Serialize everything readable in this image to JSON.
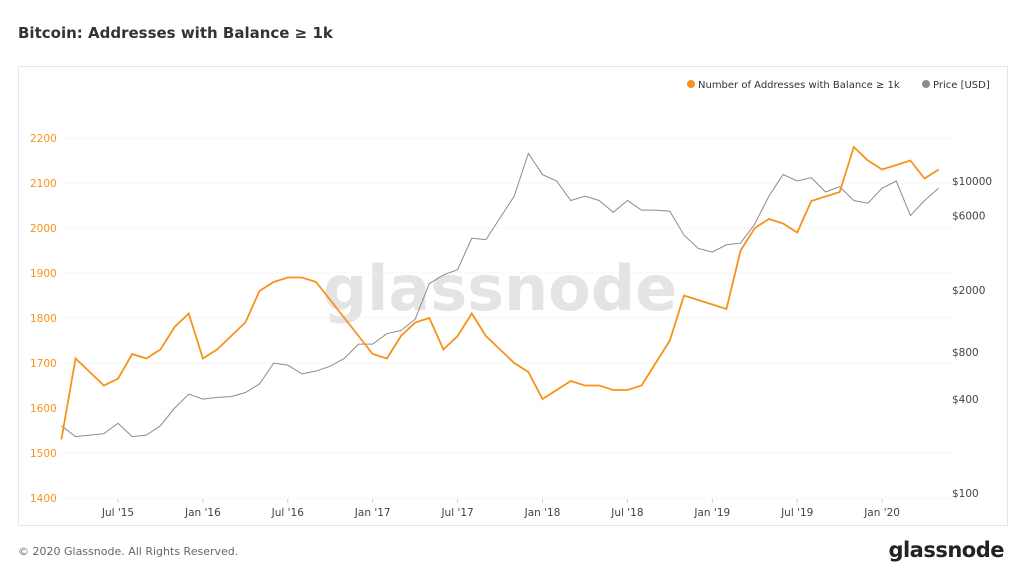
{
  "title": "Bitcoin: Addresses with Balance ≥ 1k",
  "footer": "© 2020 Glassnode. All Rights Reserved.",
  "logo": "glassnode",
  "watermark": "glassnode",
  "colors": {
    "addresses": "#f7931a",
    "price": "#8c8c8c"
  },
  "chart_data": {
    "type": "line",
    "title": "Bitcoin: Addresses with Balance ≥ 1k",
    "legend_position": "top-right",
    "legend": [
      "Number of Addresses with Balance ≥ 1k",
      "Price [USD]"
    ],
    "x_start": "2015-03",
    "x_step": "month",
    "x_ticks": [
      "Jul '15",
      "Jan '16",
      "Jul '16",
      "Jan '17",
      "Jul '17",
      "Jan '18",
      "Jul '18",
      "Jan '19",
      "Jul '19",
      "Jan '20"
    ],
    "x_tick_index": [
      4,
      10,
      16,
      22,
      28,
      34,
      40,
      46,
      52,
      58
    ],
    "y_left": {
      "ticks": [
        1400,
        1500,
        1600,
        1700,
        1800,
        1900,
        2000,
        2100,
        2200
      ],
      "range": [
        1400,
        2200
      ],
      "scale": "linear"
    },
    "y_right": {
      "ticks": [
        100,
        400,
        800,
        2000,
        6000,
        10000
      ],
      "labels": [
        "$100",
        "$400",
        "$800",
        "$2000",
        "$6000",
        "$10000"
      ],
      "scale": "log"
    },
    "series": [
      {
        "name": "Number of Addresses with Balance ≥ 1k",
        "axis": "left",
        "values": [
          1530,
          1710,
          1680,
          1650,
          1665,
          1720,
          1710,
          1730,
          1780,
          1810,
          1710,
          1730,
          1760,
          1790,
          1860,
          1880,
          1890,
          1890,
          1880,
          1840,
          1800,
          1760,
          1720,
          1710,
          1760,
          1790,
          1800,
          1730,
          1760,
          1810,
          1760,
          1730,
          1700,
          1680,
          1620,
          1640,
          1660,
          1650,
          1650,
          1640,
          1640,
          1650,
          1700,
          1750,
          1850,
          1840,
          1830,
          1820,
          1950,
          2000,
          2020,
          2010,
          1990,
          2060,
          2070,
          2080,
          2180,
          2150,
          2130,
          2140,
          2150,
          2110,
          2130
        ]
      },
      {
        "name": "Price [USD]",
        "axis": "right",
        "values": [
          270,
          230,
          235,
          240,
          280,
          230,
          235,
          270,
          350,
          430,
          400,
          410,
          415,
          440,
          500,
          680,
          660,
          580,
          605,
          650,
          730,
          900,
          900,
          1050,
          1100,
          1300,
          2200,
          2500,
          2700,
          4300,
          4200,
          5800,
          8000,
          15000,
          11000,
          10000,
          7500,
          8000,
          7500,
          6300,
          7500,
          6500,
          6500,
          6400,
          4500,
          3700,
          3500,
          3900,
          4000,
          5300,
          8000,
          11000,
          10000,
          10500,
          8500,
          9200,
          7500,
          7200,
          9000,
          10000,
          6000,
          7500,
          9000
        ]
      }
    ]
  }
}
